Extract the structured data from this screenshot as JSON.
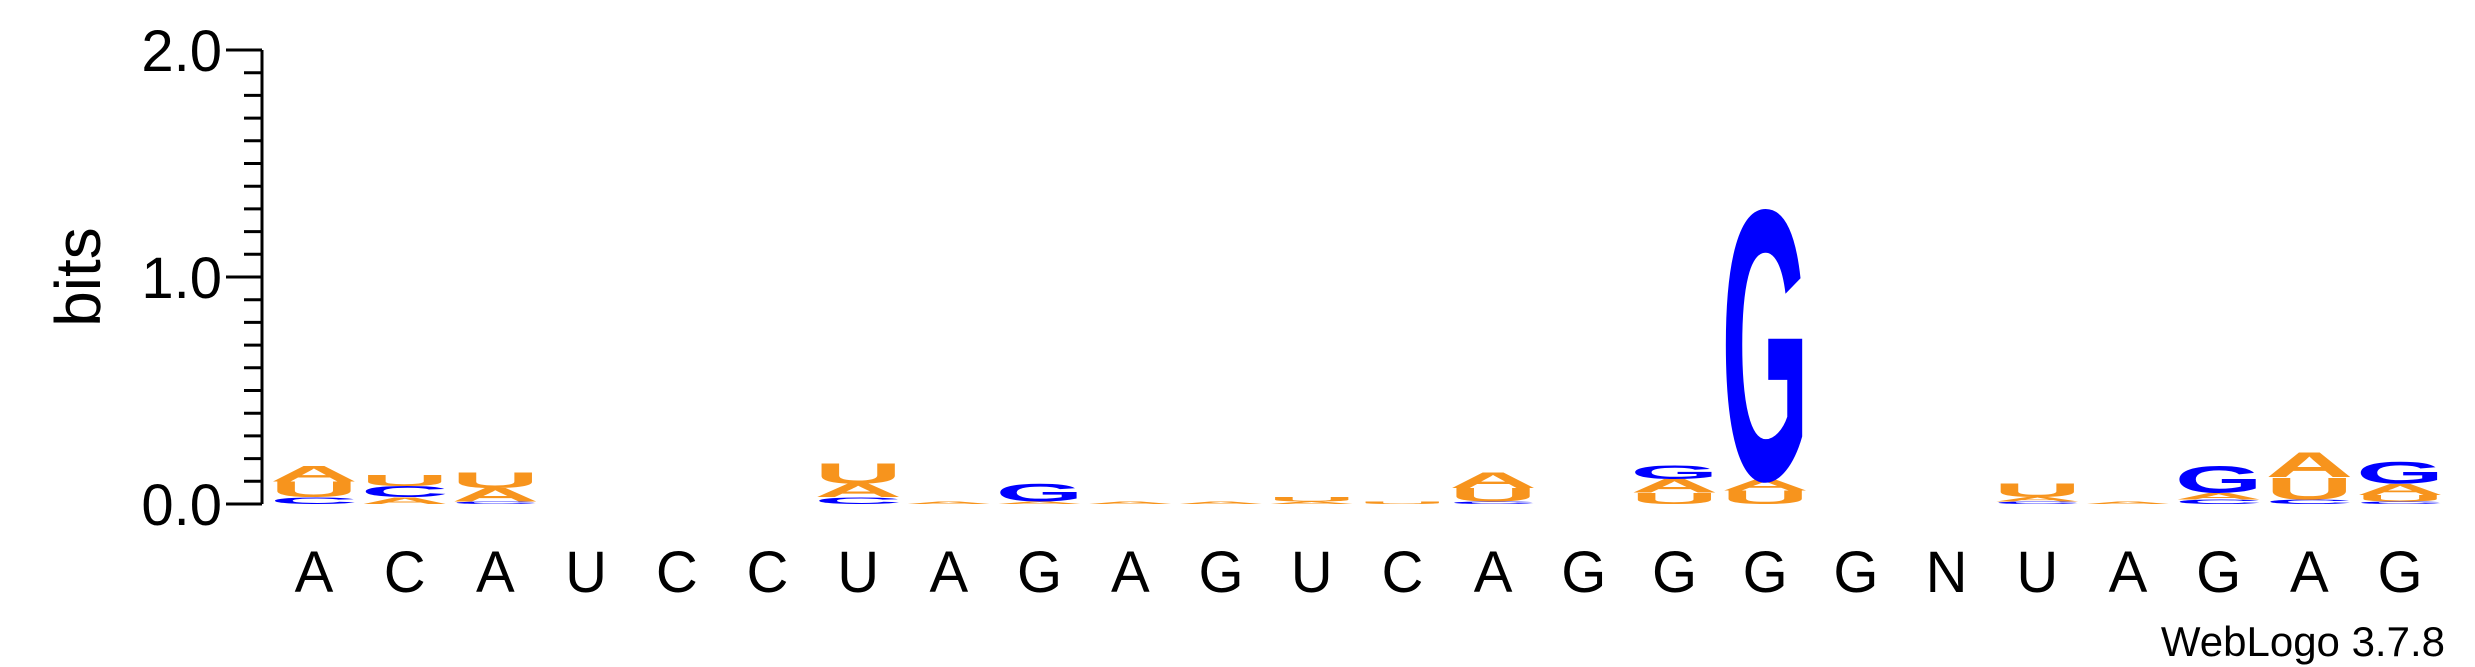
{
  "chart_data": {
    "type": "sequence_logo",
    "ylabel": "bits",
    "ylim": [
      0,
      2.0
    ],
    "yticks": [
      "0.0",
      "1.0",
      "2.0"
    ],
    "credit": "WebLogo 3.7.8",
    "colors": {
      "A": "#f7941d",
      "U": "#f7941d",
      "C": "#0000ff",
      "G": "#0000ff"
    },
    "positions": [
      {
        "label": "A",
        "letters": [
          {
            "l": "C",
            "h": 0.03
          },
          {
            "l": "U",
            "h": 0.07
          },
          {
            "l": "A",
            "h": 0.07
          }
        ]
      },
      {
        "label": "C",
        "letters": [
          {
            "l": "A",
            "h": 0.03
          },
          {
            "l": "C",
            "h": 0.05
          },
          {
            "l": "U",
            "h": 0.05
          }
        ]
      },
      {
        "label": "A",
        "letters": [
          {
            "l": "C",
            "h": 0.01
          },
          {
            "l": "A",
            "h": 0.06
          },
          {
            "l": "U",
            "h": 0.07
          }
        ]
      },
      {
        "label": "U",
        "letters": []
      },
      {
        "label": "C",
        "letters": []
      },
      {
        "label": "C",
        "letters": []
      },
      {
        "label": "U",
        "letters": [
          {
            "l": "C",
            "h": 0.03
          },
          {
            "l": "A",
            "h": 0.06
          },
          {
            "l": "U",
            "h": 0.09
          }
        ]
      },
      {
        "label": "A",
        "letters": [
          {
            "l": "A",
            "h": 0.01
          }
        ]
      },
      {
        "label": "G",
        "letters": [
          {
            "l": "A",
            "h": 0.01
          },
          {
            "l": "G",
            "h": 0.08
          }
        ]
      },
      {
        "label": "A",
        "letters": [
          {
            "l": "A",
            "h": 0.01
          }
        ]
      },
      {
        "label": "G",
        "letters": [
          {
            "l": "A",
            "h": 0.01
          }
        ]
      },
      {
        "label": "U",
        "letters": [
          {
            "l": "A",
            "h": 0.01
          },
          {
            "l": "U",
            "h": 0.02
          }
        ]
      },
      {
        "label": "C",
        "letters": [
          {
            "l": "U",
            "h": 0.01
          }
        ]
      },
      {
        "label": "A",
        "letters": [
          {
            "l": "C",
            "h": 0.01
          },
          {
            "l": "U",
            "h": 0.06
          },
          {
            "l": "A",
            "h": 0.07
          }
        ]
      },
      {
        "label": "G",
        "letters": []
      },
      {
        "label": "G",
        "letters": [
          {
            "l": "U",
            "h": 0.05
          },
          {
            "l": "A",
            "h": 0.06
          },
          {
            "l": "G",
            "h": 0.06
          }
        ]
      },
      {
        "label": "G",
        "letters": [
          {
            "l": "U",
            "h": 0.06
          },
          {
            "l": "A",
            "h": 0.05
          },
          {
            "l": "G",
            "h": 1.22
          }
        ]
      },
      {
        "label": "G",
        "letters": []
      },
      {
        "label": "N",
        "letters": []
      },
      {
        "label": "U",
        "letters": [
          {
            "l": "C",
            "h": 0.01
          },
          {
            "l": "A",
            "h": 0.02
          },
          {
            "l": "U",
            "h": 0.06
          }
        ]
      },
      {
        "label": "A",
        "letters": [
          {
            "l": "A",
            "h": 0.01
          }
        ]
      },
      {
        "label": "G",
        "letters": [
          {
            "l": "C",
            "h": 0.02
          },
          {
            "l": "A",
            "h": 0.03
          },
          {
            "l": "G",
            "h": 0.12
          }
        ]
      },
      {
        "label": "A",
        "letters": [
          {
            "l": "C",
            "h": 0.02
          },
          {
            "l": "U",
            "h": 0.1
          },
          {
            "l": "A",
            "h": 0.11
          }
        ]
      },
      {
        "label": "G",
        "letters": [
          {
            "l": "C",
            "h": 0.01
          },
          {
            "l": "U",
            "h": 0.03
          },
          {
            "l": "A",
            "h": 0.05
          },
          {
            "l": "G",
            "h": 0.1
          }
        ]
      }
    ]
  }
}
